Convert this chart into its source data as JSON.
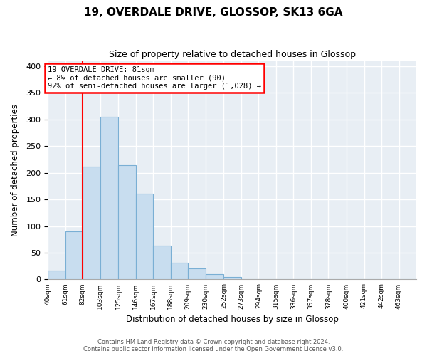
{
  "title": "19, OVERDALE DRIVE, GLOSSOP, SK13 6GA",
  "subtitle": "Size of property relative to detached houses in Glossop",
  "xlabel": "Distribution of detached houses by size in Glossop",
  "ylabel": "Number of detached properties",
  "bin_labels": [
    "40sqm",
    "61sqm",
    "82sqm",
    "103sqm",
    "125sqm",
    "146sqm",
    "167sqm",
    "188sqm",
    "209sqm",
    "230sqm",
    "252sqm",
    "273sqm",
    "294sqm",
    "315sqm",
    "336sqm",
    "357sqm",
    "378sqm",
    "400sqm",
    "421sqm",
    "442sqm",
    "463sqm"
  ],
  "bar_heights": [
    17,
    90,
    212,
    305,
    214,
    161,
    64,
    31,
    20,
    10,
    4,
    1,
    0,
    0,
    1,
    0,
    0,
    0,
    0,
    0,
    1
  ],
  "bar_color": "#c8ddef",
  "bar_edge_color": "#7aafd4",
  "ylim": [
    0,
    410
  ],
  "yticks": [
    0,
    50,
    100,
    150,
    200,
    250,
    300,
    350,
    400
  ],
  "property_line_x": 82,
  "annotation_title": "19 OVERDALE DRIVE: 81sqm",
  "annotation_line1": "← 8% of detached houses are smaller (90)",
  "annotation_line2": "92% of semi-detached houses are larger (1,028) →",
  "footer_line1": "Contains HM Land Registry data © Crown copyright and database right 2024.",
  "footer_line2": "Contains public sector information licensed under the Open Government Licence v3.0.",
  "bin_edges": [
    40,
    61,
    82,
    103,
    125,
    146,
    167,
    188,
    209,
    230,
    252,
    273,
    294,
    315,
    336,
    357,
    378,
    400,
    421,
    442,
    463,
    484
  ],
  "bg_color": "#e8eef4"
}
